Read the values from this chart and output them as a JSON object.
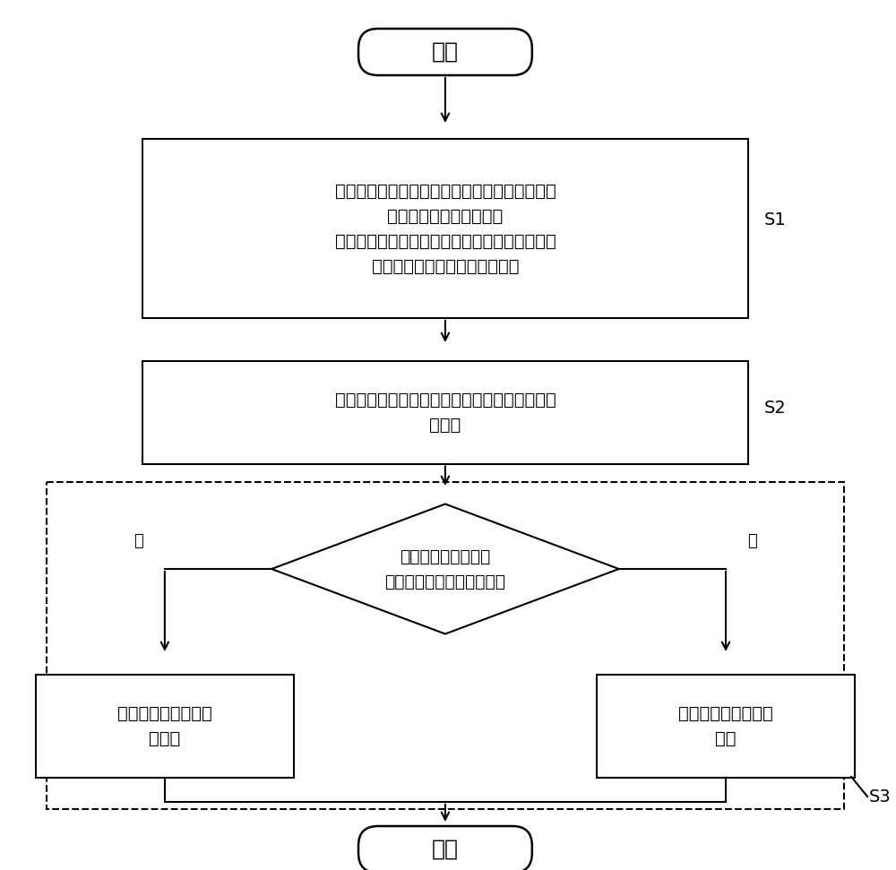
{
  "background_color": "#ffffff",
  "start_label": "开始",
  "end_label": "结束",
  "s1_label": "S1",
  "s2_label": "S2",
  "s3_label": "S3",
  "box1_text": "将换流器的阻抗与换流站直流侧的电容并联得到\n换流站的直流侧阻抗，并\n将换流站的直流侧阻抗加上输电线的阻抗，得到\n整个直流系统的直流侧阻抗模型",
  "box2_text": "根据直流侧阻抗模型在坐标系中绘制直流侧阻抗\n的极点",
  "diamond_text": "判断直流侧阻抗的极\n点是否在坐标系的右半平面",
  "box3_left_text": "判定系统直流侧阻抗\n不稳定",
  "box3_right_text": "判定系统直流侧阻抗\n稳定",
  "yes_label": "是",
  "no_label": "否",
  "line_color": "#000000",
  "fill_color": "#ffffff",
  "fig_width": 10.0,
  "fig_height": 9.71,
  "dpi": 100
}
